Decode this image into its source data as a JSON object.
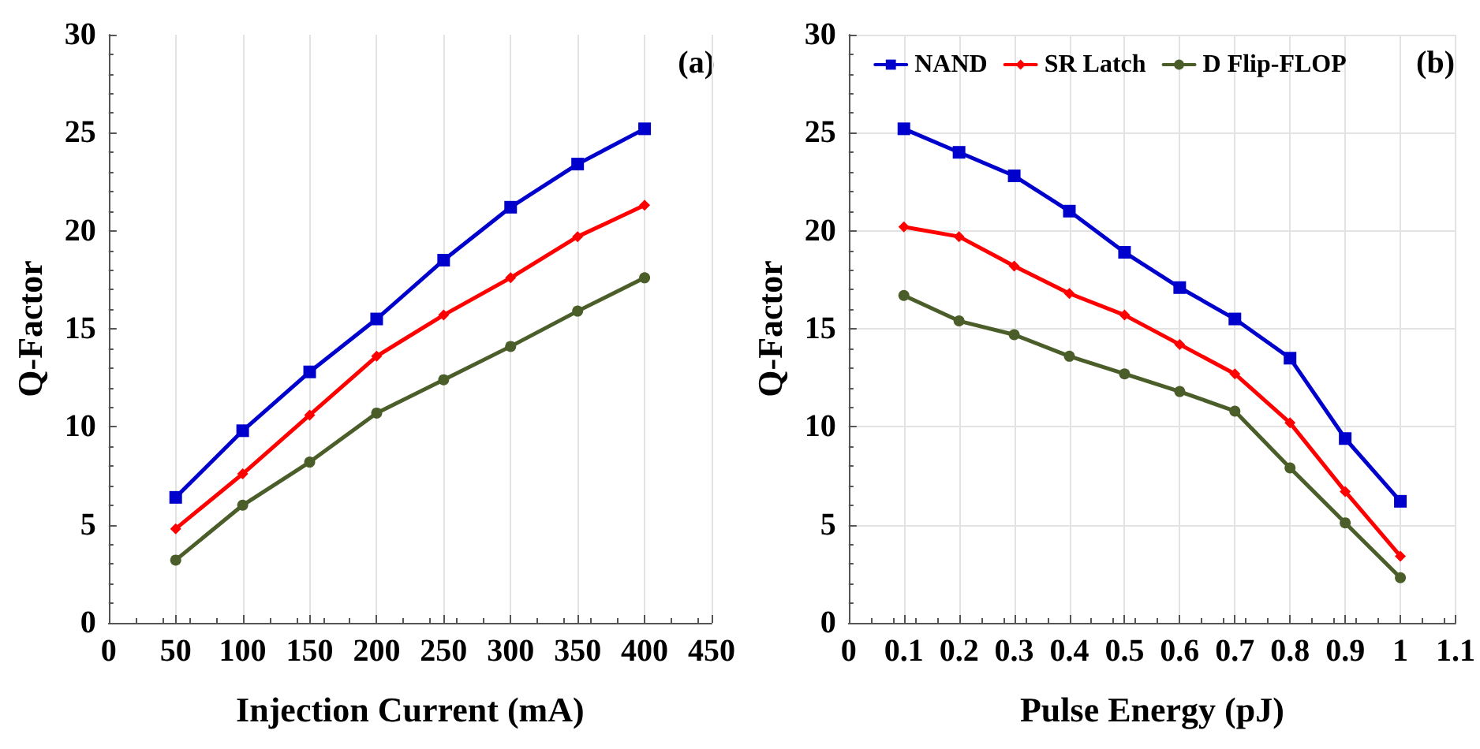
{
  "chart_data": [
    {
      "type": "line",
      "xlabel": "Injection Current (mA)",
      "ylabel": "Q-Factor",
      "annotations": [
        "(a)"
      ],
      "x": [
        50,
        100,
        150,
        200,
        250,
        300,
        350,
        400
      ],
      "series": [
        {
          "color": "#0000cc",
          "marker": "square",
          "values": [
            6.4,
            9.8,
            12.8,
            15.5,
            18.5,
            21.2,
            23.4,
            25.2
          ]
        },
        {
          "color": "#ff0000",
          "marker": "diamond",
          "values": [
            4.8,
            7.6,
            10.6,
            13.6,
            15.7,
            17.6,
            19.7,
            21.3
          ]
        },
        {
          "color": "#4b5e2a",
          "marker": "circle",
          "values": [
            3.2,
            6.0,
            8.2,
            10.7,
            12.4,
            14.1,
            15.9,
            17.6
          ]
        }
      ],
      "xlim": [
        0,
        450
      ],
      "xticks": [
        0,
        50,
        100,
        150,
        200,
        250,
        300,
        350,
        400,
        450
      ],
      "ylim": [
        0,
        30
      ],
      "yticks": [
        0,
        5,
        10,
        15,
        20,
        25,
        30
      ],
      "grid": "x",
      "legend": false
    },
    {
      "type": "line",
      "xlabel": "Pulse Energy (pJ)",
      "ylabel": "Q-Factor",
      "annotations": [
        "(b)"
      ],
      "x": [
        0.1,
        0.2,
        0.3,
        0.4,
        0.5,
        0.6,
        0.7,
        0.8,
        0.9,
        1
      ],
      "series": [
        {
          "name": "NAND",
          "color": "#0000cc",
          "marker": "square",
          "values": [
            25.2,
            24.0,
            22.8,
            21.0,
            18.9,
            17.1,
            15.5,
            13.5,
            9.4,
            6.2
          ]
        },
        {
          "name": "SR Latch",
          "color": "#ff0000",
          "marker": "diamond",
          "values": [
            20.2,
            19.7,
            18.2,
            16.8,
            15.7,
            14.2,
            12.7,
            10.2,
            6.7,
            3.4
          ]
        },
        {
          "name": "D Flip-FLOP",
          "color": "#4b5e2a",
          "marker": "circle",
          "values": [
            16.7,
            15.4,
            14.7,
            13.6,
            12.7,
            11.8,
            10.8,
            7.9,
            5.1,
            2.3
          ]
        }
      ],
      "xlim": [
        0,
        1.1
      ],
      "xticks": [
        0,
        0.1,
        0.2,
        0.3,
        0.4,
        0.5,
        0.6,
        0.7,
        0.8,
        0.9,
        1,
        1.1
      ],
      "ylim": [
        0,
        30
      ],
      "yticks": [
        0,
        5,
        10,
        15,
        20,
        25,
        30
      ],
      "grid": true,
      "legend": "top"
    }
  ]
}
